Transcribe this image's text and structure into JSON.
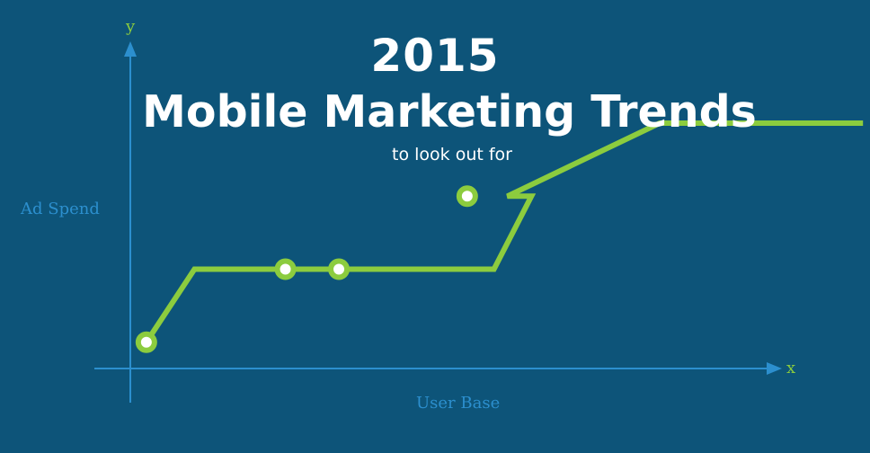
{
  "header": {
    "year": "2015",
    "title": "Mobile Marketing Trends",
    "subtitle": "to look out for"
  },
  "colors": {
    "background": "#0d5479",
    "axis": "#2c8fce",
    "line": "#8ccc3e",
    "axis_letter": "#8ccc3e"
  },
  "chart_data": {
    "type": "line",
    "xlabel": "User Base",
    "ylabel": "Ad Spend",
    "x_axis_letter": "x",
    "y_axis_letter": "y",
    "grid": false,
    "xlim": [
      0,
      100
    ],
    "ylim": [
      0,
      100
    ],
    "series": [
      {
        "values": [
          {
            "x": 3,
            "y": 9
          },
          {
            "x": 12,
            "y": 34
          },
          {
            "x": 68,
            "y": 34
          },
          {
            "x": 75,
            "y": 59
          },
          {
            "x": 70.5,
            "y": 59
          },
          {
            "x": 99,
            "y": 84
          },
          {
            "x": 137,
            "y": 84
          }
        ],
        "markers": [
          {
            "x": 3,
            "y": 9
          },
          {
            "x": 29,
            "y": 34
          },
          {
            "x": 39,
            "y": 34
          },
          {
            "x": 63,
            "y": 59
          }
        ]
      }
    ]
  }
}
